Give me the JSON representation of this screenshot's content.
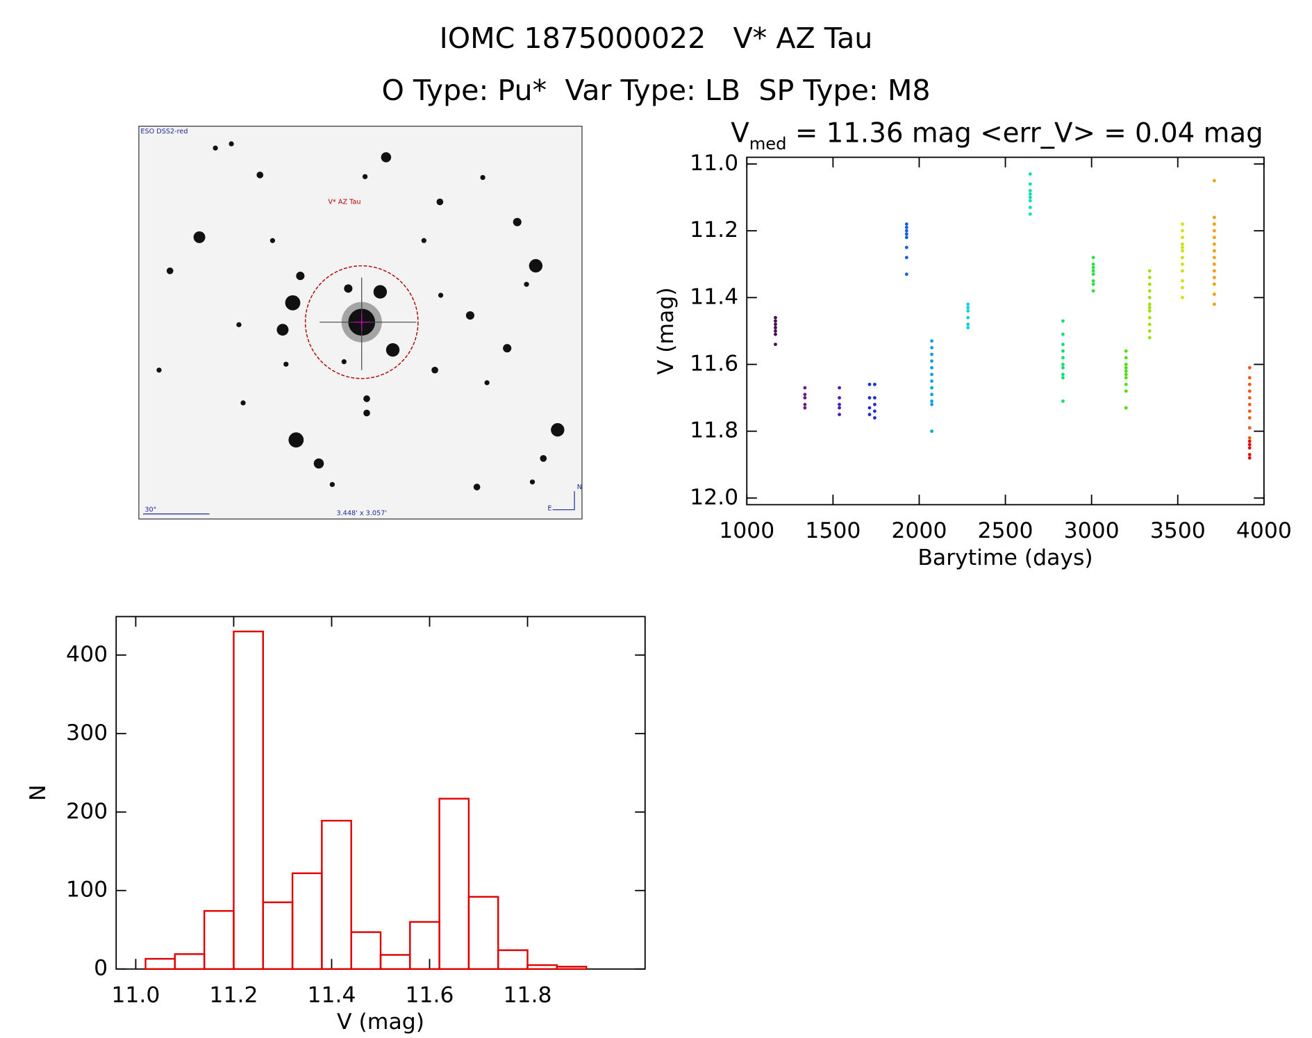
{
  "title": "IOMC 1875000022   V* AZ Tau",
  "subtitle": "O Type: Pu*  Var Type: LB  SP Type: M8",
  "image": {
    "survey": "ESO DSS2-red",
    "target": "V* AZ Tau",
    "scale": "30\"",
    "field": "3.448' x 3.057'",
    "north": "N",
    "east": "E"
  },
  "chart_data": [
    {
      "type": "scatter",
      "title": {
        "text": "V",
        "subscript": "med",
        "rest": " = 11.36 mag <err_V> = 0.04 mag"
      },
      "xlabel": "Barytime (days)",
      "ylabel": "V (mag)",
      "xlim": [
        1000,
        4000
      ],
      "xticks": [
        1000,
        1500,
        2000,
        2500,
        3000,
        3500,
        4000
      ],
      "ylim": [
        12.02,
        10.98
      ],
      "yticks": [
        {
          "value": 11,
          "label": "11.0"
        },
        11.2,
        11.4,
        11.6,
        11.8,
        {
          "value": 12,
          "label": "12.0"
        }
      ],
      "series": [
        {
          "color": "#4b0a5a",
          "x": [
            1166,
            1166,
            1166,
            1166,
            1166,
            1166,
            1166
          ],
          "values": [
            11.46,
            11.47,
            11.48,
            11.49,
            11.5,
            11.51,
            11.54
          ]
        },
        {
          "color": "#6a1a8a",
          "x": [
            1337,
            1337,
            1337,
            1337,
            1337
          ],
          "values": [
            11.67,
            11.69,
            11.7,
            11.72,
            11.73
          ]
        },
        {
          "color": "#4a20b0",
          "x": [
            1537,
            1537,
            1537,
            1537,
            1537
          ],
          "values": [
            11.67,
            11.7,
            11.72,
            11.73,
            11.75
          ]
        },
        {
          "color": "#2030d0",
          "x": [
            1712,
            1712,
            1712,
            1712,
            1742,
            1742,
            1742,
            1742,
            1742
          ],
          "values": [
            11.66,
            11.7,
            11.73,
            11.75,
            11.66,
            11.7,
            11.72,
            11.74,
            11.76
          ]
        },
        {
          "color": "#1060e0",
          "x": [
            1927,
            1927,
            1927,
            1927,
            1927,
            1927,
            1927,
            1927
          ],
          "values": [
            11.18,
            11.19,
            11.2,
            11.21,
            11.22,
            11.25,
            11.28,
            11.33
          ]
        },
        {
          "color": "#10a0e0",
          "x": [
            2073,
            2073,
            2073,
            2073,
            2073,
            2073,
            2073,
            2073,
            2073,
            2073,
            2073,
            2073
          ],
          "values": [
            11.53,
            11.55,
            11.57,
            11.59,
            11.61,
            11.63,
            11.65,
            11.67,
            11.69,
            11.71,
            11.72,
            11.8
          ]
        },
        {
          "color": "#10d0e0",
          "x": [
            2283,
            2283,
            2283,
            2283,
            2283,
            2283
          ],
          "values": [
            11.42,
            11.43,
            11.44,
            11.46,
            11.48,
            11.49
          ]
        },
        {
          "color": "#10e0b0",
          "x": [
            2644,
            2644,
            2644,
            2644,
            2644,
            2644,
            2644,
            2644
          ],
          "values": [
            11.03,
            11.06,
            11.08,
            11.09,
            11.1,
            11.11,
            11.13,
            11.15
          ]
        },
        {
          "color": "#10e070",
          "x": [
            2834,
            2834,
            2834,
            2834,
            2834,
            2834,
            2834,
            2834,
            2834,
            2834
          ],
          "values": [
            11.47,
            11.51,
            11.54,
            11.56,
            11.58,
            11.6,
            11.61,
            11.63,
            11.64,
            11.71
          ]
        },
        {
          "color": "#30e040",
          "x": [
            3010,
            3010,
            3010,
            3010,
            3010,
            3010,
            3010,
            3010
          ],
          "values": [
            11.28,
            11.3,
            11.31,
            11.32,
            11.33,
            11.35,
            11.36,
            11.38
          ]
        },
        {
          "color": "#50e010",
          "x": [
            3200,
            3200,
            3200,
            3200,
            3200,
            3200,
            3200,
            3200,
            3200,
            3200
          ],
          "values": [
            11.56,
            11.58,
            11.6,
            11.61,
            11.62,
            11.63,
            11.64,
            11.66,
            11.68,
            11.73
          ]
        },
        {
          "color": "#a0e010",
          "x": [
            3337,
            3337,
            3337,
            3337,
            3337,
            3337,
            3337,
            3337,
            3337,
            3337,
            3337,
            3337
          ],
          "values": [
            11.32,
            11.34,
            11.36,
            11.38,
            11.4,
            11.42,
            11.43,
            11.44,
            11.46,
            11.48,
            11.5,
            11.52
          ]
        },
        {
          "color": "#d0e010",
          "x": [
            3527,
            3527,
            3527,
            3527,
            3527,
            3527,
            3527,
            3527,
            3527,
            3527,
            3527,
            3527
          ],
          "values": [
            11.18,
            11.2,
            11.22,
            11.24,
            11.25,
            11.26,
            11.28,
            11.3,
            11.32,
            11.35,
            11.37,
            11.4
          ]
        },
        {
          "color": "#f0a010",
          "x": [
            3712,
            3712,
            3712,
            3712,
            3712,
            3712,
            3712,
            3712,
            3712,
            3712,
            3712,
            3712,
            3712,
            3712
          ],
          "values": [
            11.05,
            11.16,
            11.18,
            11.2,
            11.22,
            11.24,
            11.26,
            11.28,
            11.3,
            11.32,
            11.34,
            11.36,
            11.39,
            11.42
          ]
        },
        {
          "color": "#f05a10",
          "x": [
            3917,
            3917,
            3917,
            3917,
            3917,
            3917,
            3917,
            3917,
            3917,
            3917
          ],
          "values": [
            11.61,
            11.64,
            11.66,
            11.68,
            11.7,
            11.72,
            11.74,
            11.76,
            11.79,
            11.82
          ]
        },
        {
          "color": "#e01010",
          "x": [
            3917,
            3917,
            3917,
            3917,
            3917
          ],
          "values": [
            11.83,
            11.84,
            11.85,
            11.87,
            11.88
          ]
        }
      ]
    },
    {
      "type": "histogram",
      "xlabel": "V (mag)",
      "ylabel": "N",
      "xlim": [
        10.96,
        12.04
      ],
      "xticks": [
        {
          "value": 11,
          "label": "11.0"
        },
        11.2,
        11.4,
        11.6,
        11.8
      ],
      "ylim": [
        0,
        449
      ],
      "yticks": [
        0,
        100,
        200,
        300,
        400
      ],
      "color": "#e00000",
      "bins": [
        11.02,
        11.08,
        11.14,
        11.2,
        11.26,
        11.32,
        11.38,
        11.44,
        11.5,
        11.56,
        11.62,
        11.68,
        11.74,
        11.8,
        11.86,
        11.92
      ],
      "values": [
        13,
        19,
        74,
        430,
        85,
        122,
        189,
        47,
        18,
        60,
        217,
        92,
        24,
        5,
        3
      ]
    }
  ]
}
